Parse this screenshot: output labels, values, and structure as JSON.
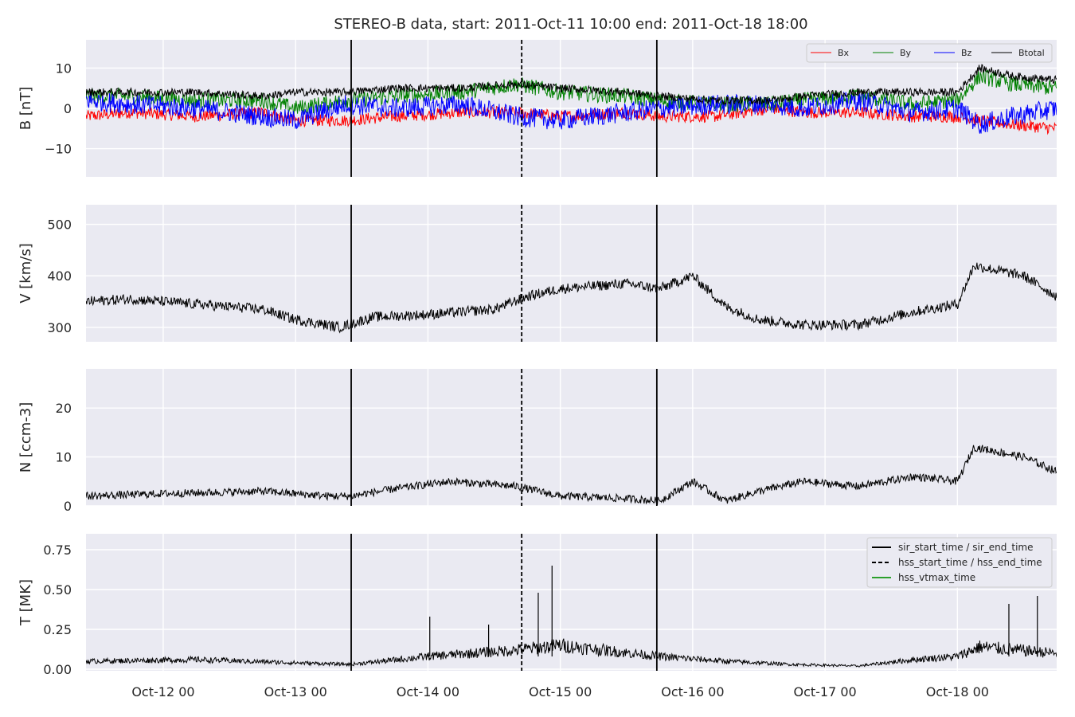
{
  "title": "STEREO-B data, start: 2011-Oct-11 10:00  end: 2011-Oct-18 18:00",
  "x_tick_labels": [
    "Oct-12 00",
    "Oct-13 00",
    "Oct-14 00",
    "Oct-15 00",
    "Oct-16 00",
    "Oct-17 00",
    "Oct-18 00"
  ],
  "colors": {
    "bg": "#eaeaf2",
    "grid": "#ffffff",
    "Bx": "#ff0000",
    "By": "#008000",
    "Bz": "#0000ff",
    "Btotal": "#000000",
    "vtmax": "#2ca02c",
    "text": "#262626"
  },
  "chart_data": [
    {
      "type": "line",
      "panel": "B",
      "ylabel": "B [nT]",
      "xlim": [
        "2011-10-11 10:00",
        "2011-10-18 18:00"
      ],
      "ylim": [
        -17,
        17
      ],
      "yticks": [
        10,
        0,
        -10
      ],
      "ytick_labels": [
        "10",
        "0",
        "−10"
      ],
      "legend": {
        "placement": "top-right",
        "entries": [
          "Bx",
          "By",
          "Bz",
          "Btotal"
        ]
      },
      "series": [
        {
          "name": "Bx",
          "x": [
            "2011-10-11 10:00",
            "2011-10-11 18:00",
            "2011-10-12 06:00",
            "2011-10-12 18:00",
            "2011-10-13 00:00",
            "2011-10-13 09:00",
            "2011-10-13 18:00",
            "2011-10-14 06:00",
            "2011-10-14 16:00",
            "2011-10-15 00:00",
            "2011-10-15 12:00",
            "2011-10-15 18:00",
            "2011-10-16 04:00",
            "2011-10-16 14:00",
            "2011-10-16 20:00",
            "2011-10-17 06:00",
            "2011-10-17 16:00",
            "2011-10-18 00:00",
            "2011-10-18 04:00",
            "2011-10-18 10:00",
            "2011-10-18 18:00"
          ],
          "y": [
            -2,
            -1,
            -2,
            -1,
            -3,
            -3,
            -2,
            -1,
            -1,
            -2,
            -1,
            -2,
            -2,
            0,
            -1,
            -1,
            -2,
            -2,
            -3,
            -4,
            -5
          ]
        },
        {
          "name": "By",
          "x": [
            "2011-10-11 10:00",
            "2011-10-11 18:00",
            "2011-10-12 06:00",
            "2011-10-12 18:00",
            "2011-10-13 00:00",
            "2011-10-13 09:00",
            "2011-10-13 18:00",
            "2011-10-14 06:00",
            "2011-10-14 16:00",
            "2011-10-15 00:00",
            "2011-10-15 12:00",
            "2011-10-15 18:00",
            "2011-10-16 04:00",
            "2011-10-16 14:00",
            "2011-10-16 20:00",
            "2011-10-17 06:00",
            "2011-10-17 16:00",
            "2011-10-18 00:00",
            "2011-10-18 04:00",
            "2011-10-18 10:00",
            "2011-10-18 18:00"
          ],
          "y": [
            3,
            3,
            2,
            2,
            0,
            2,
            3,
            4,
            6,
            4,
            3,
            2,
            1,
            1,
            2,
            3,
            1,
            2,
            8,
            6,
            5
          ]
        },
        {
          "name": "Bz",
          "x": [
            "2011-10-11 10:00",
            "2011-10-11 18:00",
            "2011-10-12 06:00",
            "2011-10-12 18:00",
            "2011-10-13 00:00",
            "2011-10-13 09:00",
            "2011-10-13 18:00",
            "2011-10-14 06:00",
            "2011-10-14 16:00",
            "2011-10-15 00:00",
            "2011-10-15 12:00",
            "2011-10-15 18:00",
            "2011-10-16 04:00",
            "2011-10-16 14:00",
            "2011-10-16 20:00",
            "2011-10-17 06:00",
            "2011-10-17 16:00",
            "2011-10-18 00:00",
            "2011-10-18 04:00",
            "2011-10-18 10:00",
            "2011-10-18 18:00"
          ],
          "y": [
            2,
            1,
            0,
            -2,
            -3,
            1,
            0,
            1,
            -2,
            -3,
            -1,
            0,
            1,
            1,
            0,
            2,
            -1,
            0,
            -4,
            -2,
            0
          ]
        },
        {
          "name": "Btotal",
          "x": [
            "2011-10-11 10:00",
            "2011-10-11 18:00",
            "2011-10-12 06:00",
            "2011-10-12 18:00",
            "2011-10-13 00:00",
            "2011-10-13 09:00",
            "2011-10-13 18:00",
            "2011-10-14 06:00",
            "2011-10-14 16:00",
            "2011-10-15 00:00",
            "2011-10-15 12:00",
            "2011-10-15 18:00",
            "2011-10-16 04:00",
            "2011-10-16 14:00",
            "2011-10-16 20:00",
            "2011-10-17 06:00",
            "2011-10-17 16:00",
            "2011-10-18 00:00",
            "2011-10-18 04:00",
            "2011-10-18 10:00",
            "2011-10-18 18:00"
          ],
          "y": [
            4,
            4,
            4,
            3,
            4,
            4,
            5,
            5,
            6,
            5,
            4,
            3,
            2,
            2,
            3,
            4,
            4,
            4,
            10,
            8,
            7
          ]
        }
      ]
    },
    {
      "type": "line",
      "panel": "V",
      "ylabel": "V [km/s]",
      "xlim": [
        "2011-10-11 10:00",
        "2011-10-18 18:00"
      ],
      "ylim": [
        272,
        538
      ],
      "yticks": [
        500,
        400,
        300
      ],
      "ytick_labels": [
        "500",
        "400",
        "300"
      ],
      "series": [
        {
          "x": [
            "2011-10-11 10:00",
            "2011-10-11 18:00",
            "2011-10-12 06:00",
            "2011-10-12 18:00",
            "2011-10-13 00:00",
            "2011-10-13 08:00",
            "2011-10-13 14:00",
            "2011-10-14 00:00",
            "2011-10-14 12:00",
            "2011-10-14 18:00",
            "2011-10-15 00:00",
            "2011-10-15 12:00",
            "2011-10-15 18:00",
            "2011-10-16 00:00",
            "2011-10-16 06:00",
            "2011-10-16 12:00",
            "2011-10-16 20:00",
            "2011-10-17 06:00",
            "2011-10-17 16:00",
            "2011-10-18 00:00",
            "2011-10-18 03:00",
            "2011-10-18 12:00",
            "2011-10-18 18:00"
          ],
          "y": [
            350,
            355,
            345,
            335,
            315,
            300,
            320,
            325,
            335,
            360,
            375,
            385,
            375,
            400,
            340,
            315,
            305,
            305,
            330,
            345,
            420,
            400,
            360
          ]
        }
      ]
    },
    {
      "type": "line",
      "panel": "N",
      "ylabel": "N [ccm-3]",
      "xlim": [
        "2011-10-11 10:00",
        "2011-10-18 18:00"
      ],
      "ylim": [
        0,
        28
      ],
      "yticks": [
        20,
        10,
        0
      ],
      "ytick_labels": [
        "20",
        "10",
        "0"
      ],
      "series": [
        {
          "x": [
            "2011-10-11 10:00",
            "2011-10-12 00:00",
            "2011-10-12 18:00",
            "2011-10-13 06:00",
            "2011-10-13 10:00",
            "2011-10-13 18:00",
            "2011-10-14 04:00",
            "2011-10-14 16:00",
            "2011-10-15 00:00",
            "2011-10-15 12:00",
            "2011-10-15 18:00",
            "2011-10-16 00:00",
            "2011-10-16 06:00",
            "2011-10-16 12:00",
            "2011-10-16 20:00",
            "2011-10-17 06:00",
            "2011-10-17 16:00",
            "2011-10-18 00:00",
            "2011-10-18 03:00",
            "2011-10-18 12:00",
            "2011-10-18 18:00"
          ],
          "y": [
            2,
            2.5,
            3,
            2,
            2,
            3.5,
            5,
            4,
            2,
            1.5,
            1,
            5,
            1,
            3,
            5,
            4,
            6,
            5,
            12,
            10,
            7
          ]
        }
      ]
    },
    {
      "type": "line",
      "panel": "T",
      "ylabel": "T [MK]",
      "xlim": [
        "2011-10-11 10:00",
        "2011-10-18 18:00"
      ],
      "ylim": [
        -0.01,
        0.85
      ],
      "yticks": [
        0.75,
        0.5,
        0.25,
        0
      ],
      "ytick_labels": [
        "0.75",
        "0.50",
        "0.25",
        "0.00"
      ],
      "legend": {
        "placement": "top-right",
        "entries": [
          "sir_start_time / sir_end_time",
          "hss_start_time / hss_end_time",
          "hss_vtmax_time"
        ]
      },
      "series": [
        {
          "x": [
            "2011-10-11 10:00",
            "2011-10-12 06:00",
            "2011-10-13 00:00",
            "2011-10-13 10:00",
            "2011-10-14 00:00",
            "2011-10-14 16:00",
            "2011-10-15 00:00",
            "2011-10-15 18:00",
            "2011-10-16 06:00",
            "2011-10-16 18:00",
            "2011-10-17 06:00",
            "2011-10-17 16:00",
            "2011-10-18 00:00",
            "2011-10-18 04:00",
            "2011-10-18 18:00"
          ],
          "y": [
            0.05,
            0.06,
            0.04,
            0.03,
            0.08,
            0.12,
            0.15,
            0.08,
            0.05,
            0.03,
            0.02,
            0.06,
            0.08,
            0.14,
            0.1
          ]
        }
      ],
      "annotations": [
        {
          "x": "2011-10-14 22:30",
          "y": 0.65
        },
        {
          "x": "2011-10-14 20:00",
          "y": 0.48
        },
        {
          "x": "2011-10-14 00:20",
          "y": 0.33
        },
        {
          "x": "2011-10-18 14:30",
          "y": 0.46
        },
        {
          "x": "2011-10-18 09:20",
          "y": 0.41
        },
        {
          "x": "2011-10-14 11:00",
          "y": 0.28
        }
      ]
    }
  ],
  "event_lines": [
    {
      "name": "sir_start_time",
      "time": "2011-10-13 10:05",
      "style": "solid"
    },
    {
      "name": "hss_start_time",
      "time": "2011-10-14 17:00",
      "style": "dashed"
    },
    {
      "name": "sir_end_time",
      "time": "2011-10-15 17:30",
      "style": "solid"
    }
  ]
}
